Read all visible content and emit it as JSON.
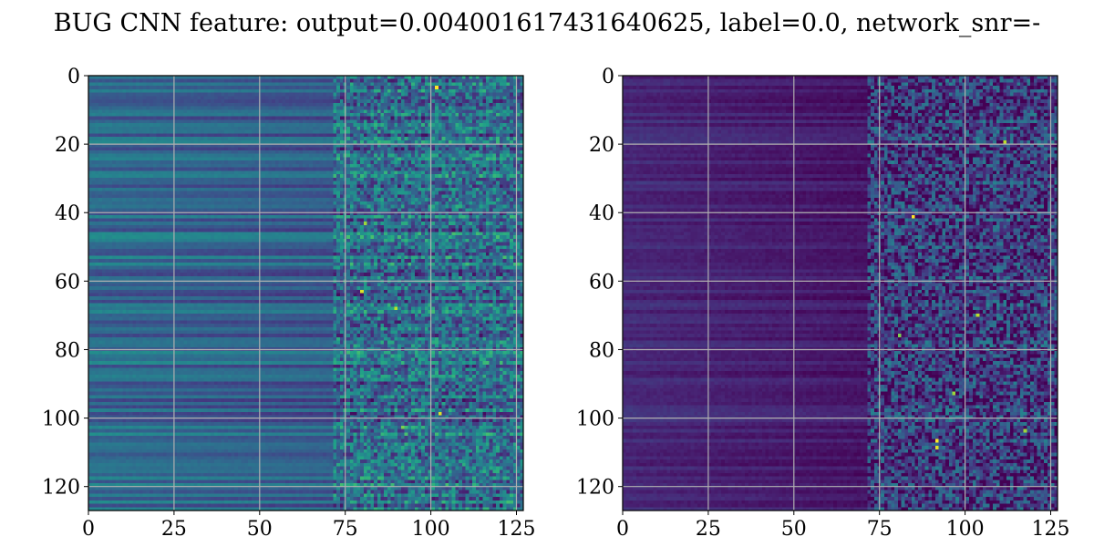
{
  "chart_data": {
    "type": "heatmap",
    "title": "BUG CNN feature: output=0.004001617431640625, label=0.0, network_snr=-",
    "colormap": "viridis",
    "grid": true,
    "panels": [
      {
        "name": "",
        "xlim": [
          0,
          127
        ],
        "ylim": [
          127,
          0
        ],
        "xticks": [
          0,
          25,
          50,
          75,
          100,
          125
        ],
        "yticks": [
          0,
          20,
          40,
          60,
          80,
          100,
          120
        ],
        "shape": [
          128,
          128
        ],
        "value_description": "Dense 128×128 intensity matrix; brighter (yellow) cells concentrated for columns > 75, especially rows ~3, ~63–68, ~100–103",
        "background_level": 0.35,
        "hotspots": [
          {
            "row": 3,
            "col": 102,
            "value": 1.0
          },
          {
            "row": 63,
            "col": 80,
            "value": 0.95
          },
          {
            "row": 68,
            "col": 90,
            "value": 0.9
          },
          {
            "row": 99,
            "col": 103,
            "value": 0.95
          },
          {
            "row": 43,
            "col": 81,
            "value": 0.85
          },
          {
            "row": 103,
            "col": 92,
            "value": 0.8
          }
        ]
      },
      {
        "name": "",
        "xlim": [
          0,
          127
        ],
        "ylim": [
          127,
          0
        ],
        "xticks": [
          0,
          25,
          50,
          75,
          100,
          125
        ],
        "yticks": [
          0,
          20,
          40,
          60,
          80,
          100,
          120
        ],
        "shape": [
          128,
          128
        ],
        "value_description": "Dense 128×128 intensity matrix; mostly dark purple, scattered bright cells for columns > 75",
        "background_level": 0.12,
        "hotspots": [
          {
            "row": 41,
            "col": 85,
            "value": 1.0
          },
          {
            "row": 107,
            "col": 92,
            "value": 1.0
          },
          {
            "row": 109,
            "col": 92,
            "value": 0.95
          },
          {
            "row": 19,
            "col": 112,
            "value": 0.9
          },
          {
            "row": 70,
            "col": 104,
            "value": 0.9
          },
          {
            "row": 93,
            "col": 97,
            "value": 0.85
          },
          {
            "row": 76,
            "col": 81,
            "value": 0.8
          },
          {
            "row": 104,
            "col": 118,
            "value": 0.85
          }
        ]
      }
    ]
  }
}
